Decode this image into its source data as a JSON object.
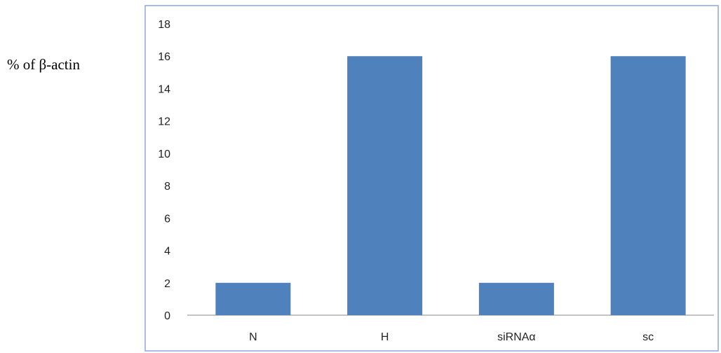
{
  "chart_data": {
    "type": "bar",
    "title": "",
    "xlabel": "",
    "ylabel": "% of β-actin",
    "categories": [
      "N",
      "H",
      "siRNAα",
      "sc"
    ],
    "values": [
      2,
      16,
      2,
      16
    ],
    "ylim": [
      0,
      18
    ],
    "yticks": [
      0,
      2,
      4,
      6,
      8,
      10,
      12,
      14,
      16,
      18
    ],
    "grid": false,
    "legend": "none",
    "bar_color": "#4F81BD",
    "frame_color": "#8EA9DB"
  }
}
